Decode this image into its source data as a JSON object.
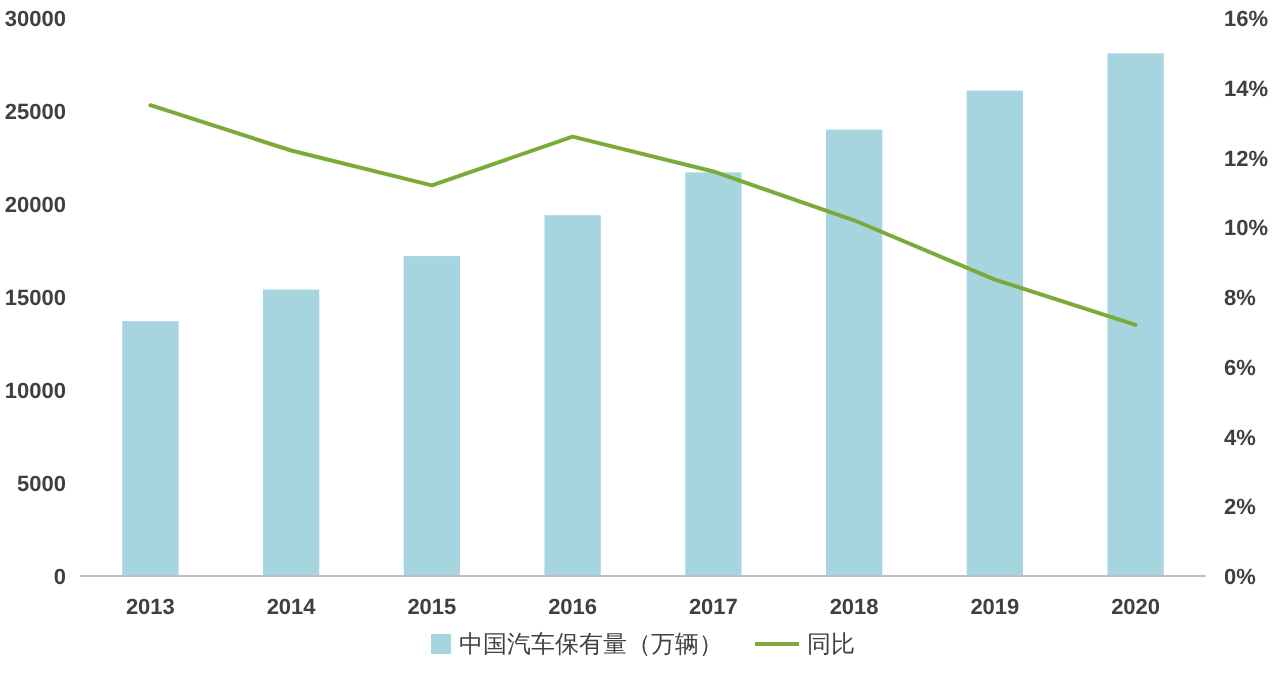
{
  "chart_data": {
    "type": "bar",
    "categories": [
      "2013",
      "2014",
      "2015",
      "2016",
      "2017",
      "2018",
      "2019",
      "2020"
    ],
    "series": [
      {
        "name": "中国汽车保有量（万辆）",
        "color": "#a6d5e0",
        "values": [
          13700,
          15400,
          17200,
          19400,
          21700,
          24000,
          26100,
          28100
        ]
      },
      {
        "name": "同比",
        "type": "line",
        "axis": "y2",
        "color": "#7aab3a",
        "values": [
          13.5,
          12.2,
          11.2,
          12.6,
          11.6,
          10.2,
          8.5,
          7.2
        ]
      }
    ],
    "ylim": [
      0,
      30000
    ],
    "yticks": [
      0,
      5000,
      10000,
      15000,
      20000,
      25000,
      30000
    ],
    "y2lim": [
      0,
      16
    ],
    "y2ticks": [
      {
        "value": 0,
        "label": "0%"
      },
      {
        "value": 2,
        "label": "2%"
      },
      {
        "value": 4,
        "label": "4%"
      },
      {
        "value": 6,
        "label": "6%"
      },
      {
        "value": 8,
        "label": "8%"
      },
      {
        "value": 10,
        "label": "10%"
      },
      {
        "value": 12,
        "label": "12%"
      },
      {
        "value": 14,
        "label": "14%"
      },
      {
        "value": 16,
        "label": "16%"
      }
    ],
    "legend": "bottom"
  }
}
